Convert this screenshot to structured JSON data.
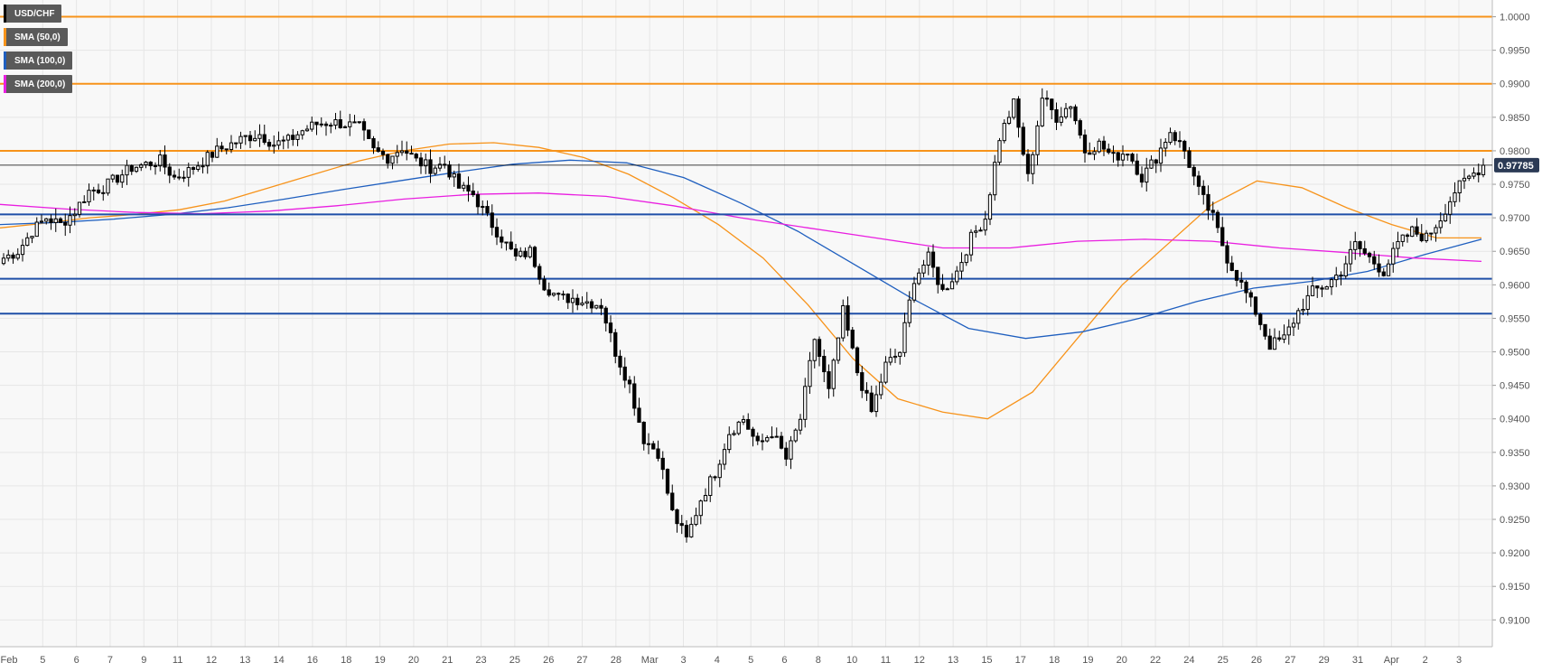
{
  "colors": {
    "background": "#f8f8f8",
    "grid": "#e6e6e6",
    "bull_body": "#ffffff",
    "bear_body": "#000000",
    "candle_outline": "#000000",
    "sma50": "#f7931a",
    "sma100": "#1f5fbf",
    "sma200": "#e91ee0",
    "resistance": "#f7931a",
    "support": "#1f4fa8",
    "price_tag_bg": "#2b3a55",
    "price_tag_text": "#ffffff",
    "axis_text": "#555555",
    "legend_bg": "#5a5a5a",
    "legend_text": "#ffffff",
    "price_line": "#000000"
  },
  "legend": [
    {
      "label": "USD/CHF",
      "color": "#000000"
    },
    {
      "label": "SMA (50,0)",
      "color": "#f7931a"
    },
    {
      "label": "SMA (100,0)",
      "color": "#1f5fbf"
    },
    {
      "label": "SMA (200,0)",
      "color": "#e91ee0"
    }
  ],
  "last_price_label": "0.97785",
  "chart_data": {
    "type": "candlestick",
    "title": "USD/CHF",
    "ylim": [
      0.906,
      1.0025
    ],
    "y_ticks": [
      "1.0000",
      "0.9950",
      "0.9900",
      "0.9850",
      "0.9800",
      "0.9750",
      "0.9700",
      "0.9650",
      "0.9600",
      "0.9550",
      "0.9500",
      "0.9450",
      "0.9400",
      "0.9350",
      "0.9300",
      "0.9250",
      "0.9200",
      "0.9150",
      "0.9100"
    ],
    "x_tick_labels": [
      "Feb",
      "5",
      "6",
      "7",
      "9",
      "11",
      "12",
      "13",
      "14",
      "16",
      "18",
      "19",
      "20",
      "21",
      "23",
      "25",
      "26",
      "27",
      "28",
      "Mar",
      "3",
      "4",
      "5",
      "6",
      "8",
      "10",
      "11",
      "12",
      "13",
      "15",
      "17",
      "18",
      "19",
      "20",
      "22",
      "24",
      "25",
      "26",
      "27",
      "29",
      "31",
      "Apr",
      "2",
      "3"
    ],
    "grid": true,
    "legend_position": "top-left",
    "horizontal_levels": {
      "resistance": [
        1.0,
        0.99,
        0.98
      ],
      "support": [
        0.9705,
        0.9609,
        0.9557
      ]
    },
    "last_price": 0.97785,
    "close_path": [
      0.964,
      0.965,
      0.968,
      0.97,
      0.969,
      0.971,
      0.974,
      0.9745,
      0.976,
      0.9775,
      0.978,
      0.9785,
      0.976,
      0.977,
      0.9785,
      0.98,
      0.981,
      0.982,
      0.9825,
      0.981,
      0.9815,
      0.983,
      0.984,
      0.9843,
      0.984,
      0.9835,
      0.98,
      0.979,
      0.9805,
      0.9785,
      0.9775,
      0.978,
      0.9745,
      0.9735,
      0.97,
      0.967,
      0.964,
      0.965,
      0.96,
      0.958,
      0.958,
      0.9575,
      0.957,
      0.95,
      0.945,
      0.937,
      0.935,
      0.926,
      0.922,
      0.928,
      0.932,
      0.938,
      0.94,
      0.936,
      0.938,
      0.934,
      0.94,
      0.952,
      0.944,
      0.956,
      0.947,
      0.941,
      0.948,
      0.95,
      0.961,
      0.964,
      0.959,
      0.962,
      0.967,
      0.97,
      0.982,
      0.987,
      0.976,
      0.988,
      0.985,
      0.987,
      0.98,
      0.981,
      0.979,
      0.98,
      0.976,
      0.979,
      0.983,
      0.98,
      0.974,
      0.97,
      0.964,
      0.96,
      0.956,
      0.951,
      0.952,
      0.956,
      0.959,
      0.96,
      0.962,
      0.966,
      0.964,
      0.962,
      0.966,
      0.968,
      0.967,
      0.97,
      0.974,
      0.976,
      0.97785
    ],
    "series": [
      {
        "name": "SMA (50,0)",
        "values": [
          0.9685,
          0.9692,
          0.97,
          0.9705,
          0.9712,
          0.9725,
          0.9745,
          0.9765,
          0.9785,
          0.98,
          0.981,
          0.9812,
          0.9805,
          0.979,
          0.9765,
          0.973,
          0.969,
          0.964,
          0.957,
          0.949,
          0.943,
          0.941,
          0.94,
          0.944,
          0.952,
          0.96,
          0.966,
          0.972,
          0.9755,
          0.9745,
          0.9715,
          0.969,
          0.967,
          0.967
        ]
      },
      {
        "name": "SMA (100,0)",
        "values": [
          0.969,
          0.9693,
          0.9698,
          0.9705,
          0.9715,
          0.9728,
          0.9742,
          0.9755,
          0.9768,
          0.978,
          0.9786,
          0.9782,
          0.976,
          0.9722,
          0.968,
          0.963,
          0.958,
          0.9535,
          0.952,
          0.953,
          0.955,
          0.9575,
          0.9595,
          0.9605,
          0.962,
          0.9645,
          0.9668
        ]
      },
      {
        "name": "SMA (200,0)",
        "values": [
          0.972,
          0.9713,
          0.9708,
          0.9706,
          0.971,
          0.9718,
          0.9728,
          0.9735,
          0.9737,
          0.9732,
          0.9718,
          0.97,
          0.9685,
          0.967,
          0.9655,
          0.9655,
          0.9665,
          0.9668,
          0.9665,
          0.9655,
          0.9648,
          0.964,
          0.9635
        ]
      }
    ]
  }
}
